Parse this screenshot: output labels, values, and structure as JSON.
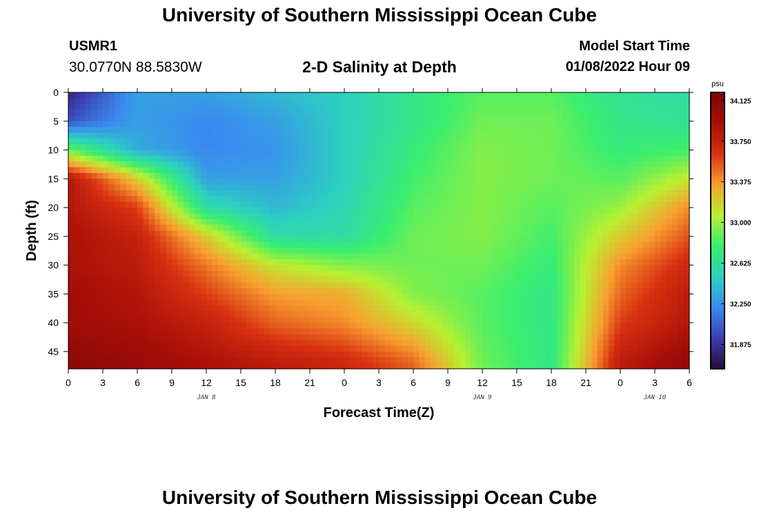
{
  "header": {
    "title": "University of Southern Mississippi Ocean Cube",
    "station_id": "USMR1",
    "coordinates": "30.0770N  88.5830W",
    "subtitle": "2-D Salinity at Depth",
    "start_label": "Model Start Time",
    "start_value": "01/08/2022 Hour 09"
  },
  "footer": {
    "title": "University of Southern Mississippi Ocean Cube"
  },
  "colors": {
    "colormap": [
      "#2a0a3a",
      "#3a3fb0",
      "#3a8cf0",
      "#2cd0c0",
      "#3aee70",
      "#b8f030",
      "#f8a030",
      "#d83010",
      "#a80f08",
      "#7a0604"
    ]
  },
  "chart_data": {
    "type": "heatmap",
    "title": "2-D Salinity at Depth",
    "xlabel": "Forecast Time(Z)",
    "ylabel": "Depth (ft)",
    "x_tick_labels": [
      "0",
      "3",
      "6",
      "9",
      "12",
      "15",
      "18",
      "21",
      "0",
      "3",
      "6",
      "9",
      "12",
      "15",
      "18",
      "21",
      "0",
      "3",
      "6"
    ],
    "x_range_hours": [
      0,
      54
    ],
    "day_labels": [
      {
        "label": "JAN 8",
        "hour": 12
      },
      {
        "label": "JAN 9",
        "hour": 36
      },
      {
        "label": "JAN 10",
        "hour": 51
      }
    ],
    "y_tick_labels": [
      "0",
      "5",
      "10",
      "15",
      "20",
      "25",
      "30",
      "35",
      "40",
      "45"
    ],
    "y_range_ft": [
      0,
      48
    ],
    "y_inverted": true,
    "colorbar": {
      "unit": "psu",
      "tick_labels": [
        "31.875",
        "32.250",
        "32.625",
        "33.000",
        "33.375",
        "33.750",
        "34.125"
      ],
      "range": [
        31.65,
        34.2
      ]
    },
    "field_description_points": {
      "depth_ft": [
        0,
        5,
        10,
        15,
        20,
        25,
        30,
        35,
        40,
        47
      ],
      "hours": [
        0,
        6,
        12,
        18,
        24,
        30,
        36,
        42,
        48,
        54
      ],
      "salinity_psu": [
        [
          31.8,
          32.3,
          32.3,
          32.4,
          32.5,
          32.7,
          32.85,
          32.85,
          32.65,
          32.6
        ],
        [
          32.0,
          32.3,
          32.2,
          32.3,
          32.5,
          32.7,
          32.9,
          32.9,
          32.7,
          32.65
        ],
        [
          32.9,
          32.35,
          32.2,
          32.25,
          32.5,
          32.75,
          32.95,
          32.9,
          32.75,
          32.8
        ],
        [
          33.85,
          33.2,
          32.3,
          32.3,
          32.5,
          32.8,
          32.95,
          32.9,
          32.85,
          33.1
        ],
        [
          33.85,
          33.6,
          32.6,
          32.4,
          32.55,
          32.85,
          32.95,
          32.85,
          33.0,
          33.4
        ],
        [
          33.9,
          33.75,
          33.2,
          32.6,
          32.6,
          32.9,
          32.95,
          32.8,
          33.2,
          33.55
        ],
        [
          33.9,
          33.8,
          33.45,
          33.1,
          32.95,
          32.9,
          32.9,
          32.75,
          33.4,
          33.7
        ],
        [
          33.95,
          33.85,
          33.6,
          33.35,
          33.3,
          32.95,
          32.85,
          32.7,
          33.5,
          33.8
        ],
        [
          33.95,
          33.9,
          33.75,
          33.5,
          33.4,
          33.15,
          32.85,
          32.7,
          33.6,
          33.85
        ],
        [
          34.1,
          34.0,
          33.9,
          33.8,
          33.7,
          33.5,
          32.9,
          32.7,
          33.8,
          34.05
        ]
      ]
    }
  }
}
